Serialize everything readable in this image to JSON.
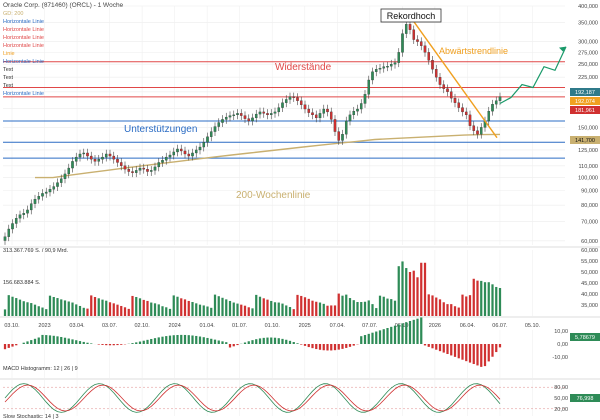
{
  "header": {
    "title": "Oracle Corp. (871460) (ORCL) - 1 Woche"
  },
  "legend": [
    {
      "label": "GD: 200",
      "color": "#c9b070"
    },
    {
      "label": "Horizontale Linie",
      "color": "#2b6cc4"
    },
    {
      "label": "Horizontale Linie",
      "color": "#e04848"
    },
    {
      "label": "Horizontale Linie",
      "color": "#e04848"
    },
    {
      "label": "Horizontale Linie",
      "color": "#e04848"
    },
    {
      "label": "Linie",
      "color": "#f0a020"
    },
    {
      "label": "Horizontale Linie",
      "color": "#2b6cc4"
    },
    {
      "label": "Text",
      "color": "#333333"
    },
    {
      "label": "Text",
      "color": "#333333"
    },
    {
      "label": "Text",
      "color": "#333333"
    },
    {
      "label": "Horizontale Linie",
      "color": "#2b6cc4"
    }
  ],
  "annotations": {
    "record_high": "Rekordhoch",
    "downtrend": "Abwärtstrendlinie",
    "resistances": "Widerstände",
    "supports": "Unterstützungen",
    "ma200": "200-Wochenlinie"
  },
  "price_badges": [
    {
      "value": "192,187",
      "color": "#2f7a8a"
    },
    {
      "value": "192,074",
      "color": "#f0a020"
    },
    {
      "value": "181,961",
      "color": "#d03030"
    },
    {
      "value": "141,700",
      "color": "#c9b070"
    }
  ],
  "volume_panel": {
    "label_avg": "313.367.769 S. / 90,9 Mrd.",
    "label_cur": "156.683.884 S."
  },
  "macd_panel": {
    "label": "MACD Histogramm: 12 | 26 | 9",
    "badge": "5,78679"
  },
  "stoch_panel": {
    "label": "Slow Stochastic: 14 | 3",
    "badge": "76,998"
  },
  "colors": {
    "up": "#2e8b57",
    "down": "#d03030",
    "resistance": "#e04848",
    "support": "#2b6cc4",
    "trend": "#f0a020",
    "ma": "#c9b070",
    "projection": "#1a9a6a"
  },
  "chart_data": {
    "type": "candlestick",
    "price_axis": {
      "scale": "log",
      "range": [
        58000,
        400000
      ],
      "ticks": [
        "400,000",
        "350,000",
        "300,000",
        "275,000",
        "250,000",
        "225,000",
        "200,000",
        "175,000",
        "150,000",
        "125,000",
        "110,000",
        "100,000",
        "90,000",
        "80,000",
        "70,000",
        "60,000"
      ]
    },
    "x_axis": {
      "ticks": [
        "03.10.",
        "2023",
        "03.04.",
        "03.07.",
        "02.10.",
        "2024",
        "01.04.",
        "01.07.",
        "01.10.",
        "2025",
        "07.04.",
        "07.07.",
        "06.10.",
        "2026",
        "06.04.",
        "06.07.",
        "05.10."
      ]
    },
    "horizontal_lines": {
      "resistance": [
        255,
        207,
        192
      ],
      "support": [
        158,
        133,
        117
      ]
    },
    "price_series": [
      62,
      66,
      69,
      72,
      74,
      75,
      77,
      81,
      84,
      86,
      88,
      89,
      91,
      93,
      96,
      99,
      103,
      108,
      114,
      118,
      121,
      122,
      119,
      116,
      114,
      116,
      118,
      121,
      119,
      116,
      113,
      110,
      107,
      105,
      104,
      106,
      108,
      107,
      105,
      106,
      109,
      113,
      115,
      118,
      120,
      123,
      126,
      124,
      121,
      119,
      122,
      125,
      128,
      133,
      139,
      145,
      151,
      156,
      160,
      163,
      165,
      166,
      168,
      165,
      161,
      158,
      162,
      167,
      170,
      168,
      166,
      168,
      170,
      176,
      183,
      188,
      192,
      191,
      186,
      180,
      174,
      169,
      166,
      162,
      168,
      174,
      170,
      160,
      145,
      135,
      142,
      158,
      166,
      171,
      174,
      182,
      196,
      220,
      235,
      240,
      242,
      245,
      246,
      250,
      253,
      275,
      320,
      345,
      330,
      305,
      300,
      290,
      275,
      258,
      240,
      225,
      212,
      205,
      200,
      190,
      183,
      176,
      170,
      166,
      152,
      146,
      142,
      150,
      158,
      171,
      181,
      186,
      192
    ],
    "ma200_series": [
      100,
      100,
      102,
      104,
      106,
      108,
      110,
      112,
      114,
      116,
      118,
      120,
      122,
      124,
      126,
      128,
      130,
      132,
      134,
      136,
      137,
      138,
      139,
      140,
      141,
      141.5,
      141.7
    ],
    "volume_axis": {
      "ticks": [
        "60,000",
        "55,000",
        "50,000",
        "45,000",
        "40,000",
        "35,000"
      ]
    },
    "macd_axis": {
      "ticks": [
        "10,00",
        "0,00",
        "-10,00"
      ]
    },
    "stoch_axis": {
      "ticks": [
        "80,00",
        "50,00",
        "20,00"
      ]
    },
    "projection_points": [
      [
        0,
        182
      ],
      [
        1,
        191
      ],
      [
        2,
        212
      ],
      [
        3,
        207
      ],
      [
        4,
        245
      ],
      [
        5,
        238
      ],
      [
        6,
        288
      ]
    ]
  }
}
